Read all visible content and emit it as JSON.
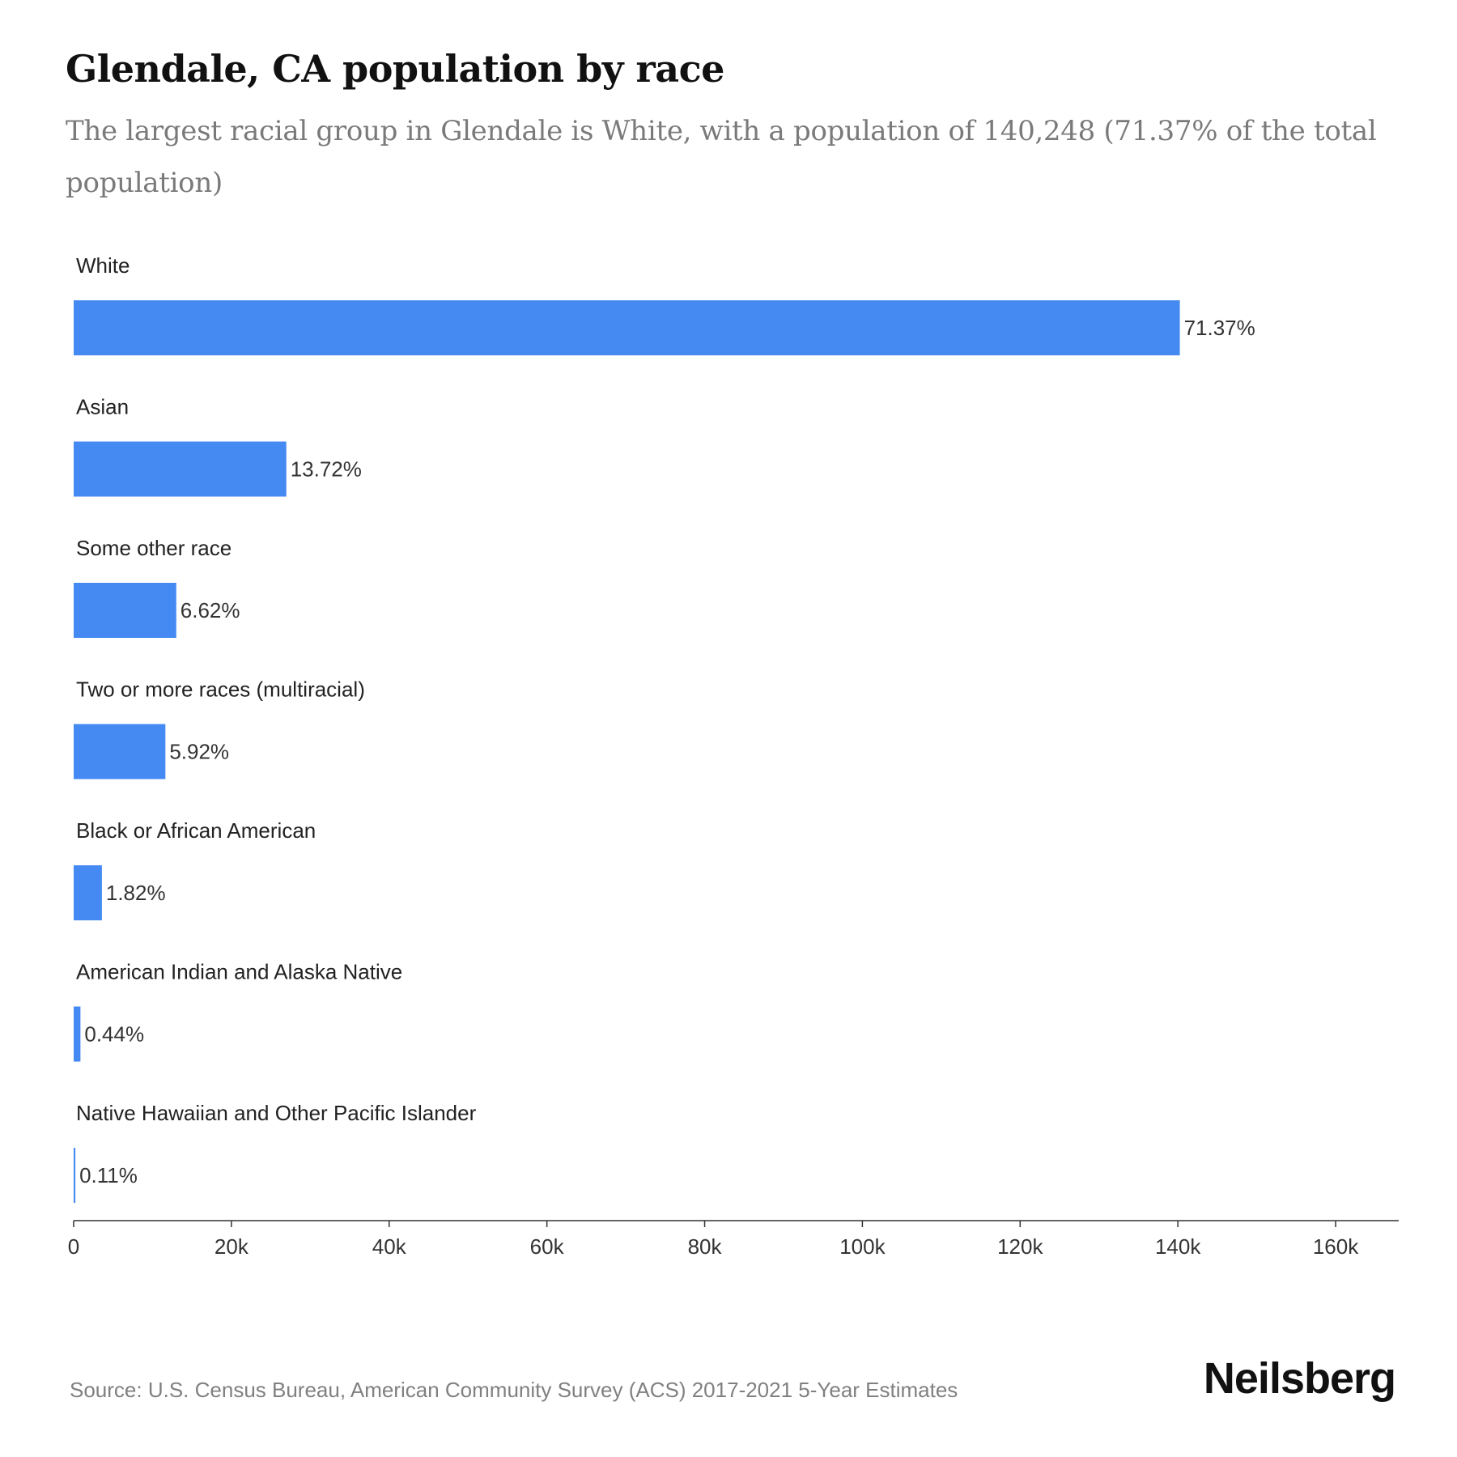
{
  "title": "Glendale, CA population by race",
  "subtitle": "The largest racial group in Glendale is White, with a population of 140,248 (71.37% of the total population)",
  "source": "Source: U.S. Census Bureau, American Community Survey (ACS) 2017-2021 5-Year Estimates",
  "brand": "Neilsberg",
  "colors": {
    "bar": "#4589f3",
    "axis": "#333333"
  },
  "chart_data": {
    "type": "bar",
    "orientation": "horizontal",
    "categories": [
      "White",
      "Asian",
      "Some other race",
      "Two or more races (multiracial)",
      "Black or African American",
      "American Indian and Alaska Native",
      "Native Hawaiian and Other Pacific Islander"
    ],
    "values": [
      140248,
      26960,
      13010,
      11630,
      3580,
      860,
      215
    ],
    "data_labels": [
      "71.37%",
      "13.72%",
      "6.62%",
      "5.92%",
      "1.82%",
      "0.44%",
      "0.11%"
    ],
    "xlim": [
      0,
      168000
    ],
    "x_ticks": [
      0,
      20000,
      40000,
      60000,
      80000,
      100000,
      120000,
      140000,
      160000
    ],
    "x_tick_labels": [
      "0",
      "20k",
      "40k",
      "60k",
      "80k",
      "100k",
      "120k",
      "140k",
      "160k"
    ],
    "grid": false,
    "legend": "none"
  }
}
